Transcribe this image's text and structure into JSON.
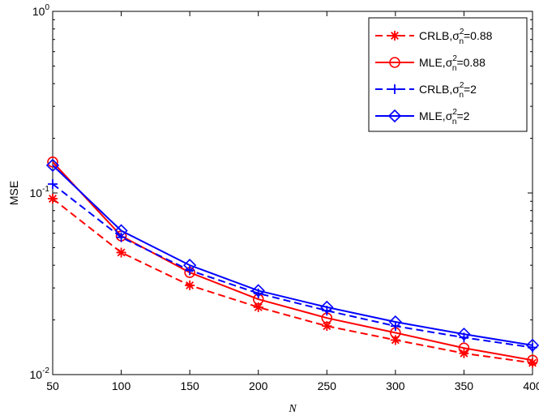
{
  "chart_data": {
    "type": "line",
    "xlabel": "N",
    "ylabel": "MSE",
    "x": [
      50,
      100,
      150,
      200,
      250,
      300,
      350,
      400
    ],
    "xlim": [
      50,
      400
    ],
    "ylim": [
      0.01,
      1
    ],
    "yscale": "log",
    "xticks": [
      "50",
      "100",
      "150",
      "200",
      "250",
      "300",
      "350",
      "400"
    ],
    "yticks": [
      {
        "base": "10",
        "exp": "-2",
        "value": 0.01
      },
      {
        "base": "10",
        "exp": "-1",
        "value": 0.1
      },
      {
        "base": "10",
        "exp": "0",
        "value": 1
      }
    ],
    "grid": false,
    "legend_position": "top-right",
    "series": [
      {
        "name": "CRLB,σ²ₙ=0.88",
        "label_main": "CRLB,",
        "label_sigma": "σ",
        "label_sup": "2",
        "label_sub": "n",
        "label_tail": "=0.88",
        "color": "#ff0000",
        "dash": "dashed",
        "marker": "asterisk",
        "values": [
          0.093,
          0.047,
          0.031,
          0.0235,
          0.0185,
          0.0155,
          0.0131,
          0.0116
        ]
      },
      {
        "name": "MLE,σ²ₙ=0.88",
        "label_main": "MLE,",
        "label_sigma": "σ",
        "label_sup": "2",
        "label_sub": "n",
        "label_tail": "=0.88",
        "color": "#ff0000",
        "dash": "solid",
        "marker": "circle",
        "values": [
          0.148,
          0.058,
          0.0365,
          0.026,
          0.0205,
          0.017,
          0.014,
          0.012
        ]
      },
      {
        "name": "CRLB,σ²ₙ=2",
        "label_main": "CRLB,",
        "label_sigma": "σ",
        "label_sup": "2",
        "label_sub": "n",
        "label_tail": "=2",
        "color": "#0000ff",
        "dash": "dashed",
        "marker": "plus",
        "values": [
          0.112,
          0.057,
          0.0375,
          0.028,
          0.0225,
          0.0185,
          0.016,
          0.0141
        ]
      },
      {
        "name": "MLE,σ²ₙ=2",
        "label_main": "MLE,",
        "label_sigma": "σ",
        "label_sup": "2",
        "label_sub": "n",
        "label_tail": "=2",
        "color": "#0000ff",
        "dash": "solid",
        "marker": "diamond",
        "values": [
          0.142,
          0.062,
          0.04,
          0.029,
          0.0235,
          0.0195,
          0.0167,
          0.0145
        ]
      }
    ]
  }
}
